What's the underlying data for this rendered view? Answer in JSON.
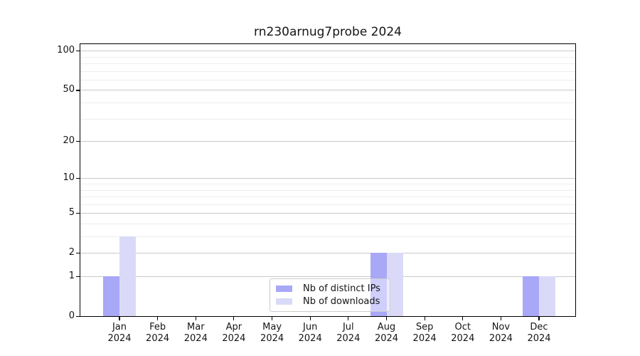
{
  "chart_data": {
    "type": "bar",
    "title": "rn230arnug7probe 2024",
    "categories": [
      "Jan",
      "Feb",
      "Mar",
      "Apr",
      "May",
      "Jun",
      "Jul",
      "Aug",
      "Sep",
      "Oct",
      "Nov",
      "Dec"
    ],
    "category_year": "2024",
    "series": [
      {
        "name": "Nb of distinct IPs",
        "color": "#a8a8f7",
        "values": [
          1,
          0,
          0,
          0,
          0,
          0,
          0,
          2,
          0,
          0,
          0,
          1
        ]
      },
      {
        "name": "Nb of downloads",
        "color": "#dadaf8",
        "values": [
          3,
          0,
          0,
          0,
          0,
          0,
          0,
          2,
          0,
          0,
          0,
          1
        ]
      }
    ],
    "y_axis": {
      "scale": "log1p",
      "major_ticks": [
        0,
        1,
        2,
        5,
        10,
        20,
        50,
        100
      ],
      "minor_gridlines": [
        3,
        4,
        6,
        7,
        8,
        9,
        30,
        40,
        60,
        70,
        80,
        90
      ],
      "max": 112
    },
    "x_axis": {
      "tick_style": "month-year-two-lines"
    },
    "legend": {
      "position": "bottom-center-inside"
    },
    "grid": "on"
  }
}
